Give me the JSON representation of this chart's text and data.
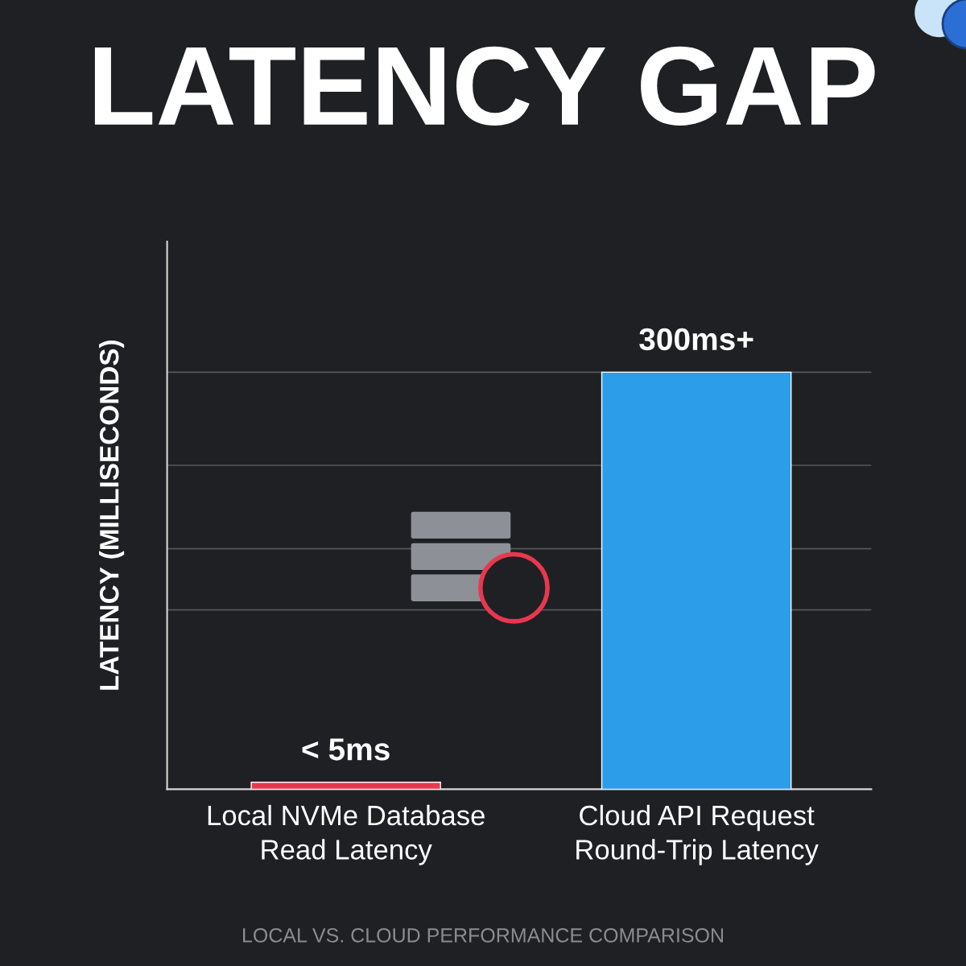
{
  "chart_data": {
    "type": "bar",
    "title": "LATENCY GAP",
    "ylabel": "LATENCY (MILLISECONDS)",
    "categories": [
      "Local NVMe Database\nRead Latency",
      "Cloud API Request\nRound-Trip Latency"
    ],
    "values": [
      5,
      300
    ],
    "colors": [
      "#e8384f",
      "#2b9de9"
    ],
    "value_labels": [
      "< 5ms",
      "300ms+"
    ],
    "ylim": [
      0,
      394
    ],
    "yticks": [
      {
        "value": 129,
        "label": null
      },
      {
        "value": 173,
        "label": null
      },
      {
        "value": 233,
        "label": null
      },
      {
        "value": 300,
        "label": null
      }
    ],
    "grid": "y",
    "annotations": [
      "LOCAL VS. CLOUD PERFORMANCE COMPARISON"
    ]
  }
}
